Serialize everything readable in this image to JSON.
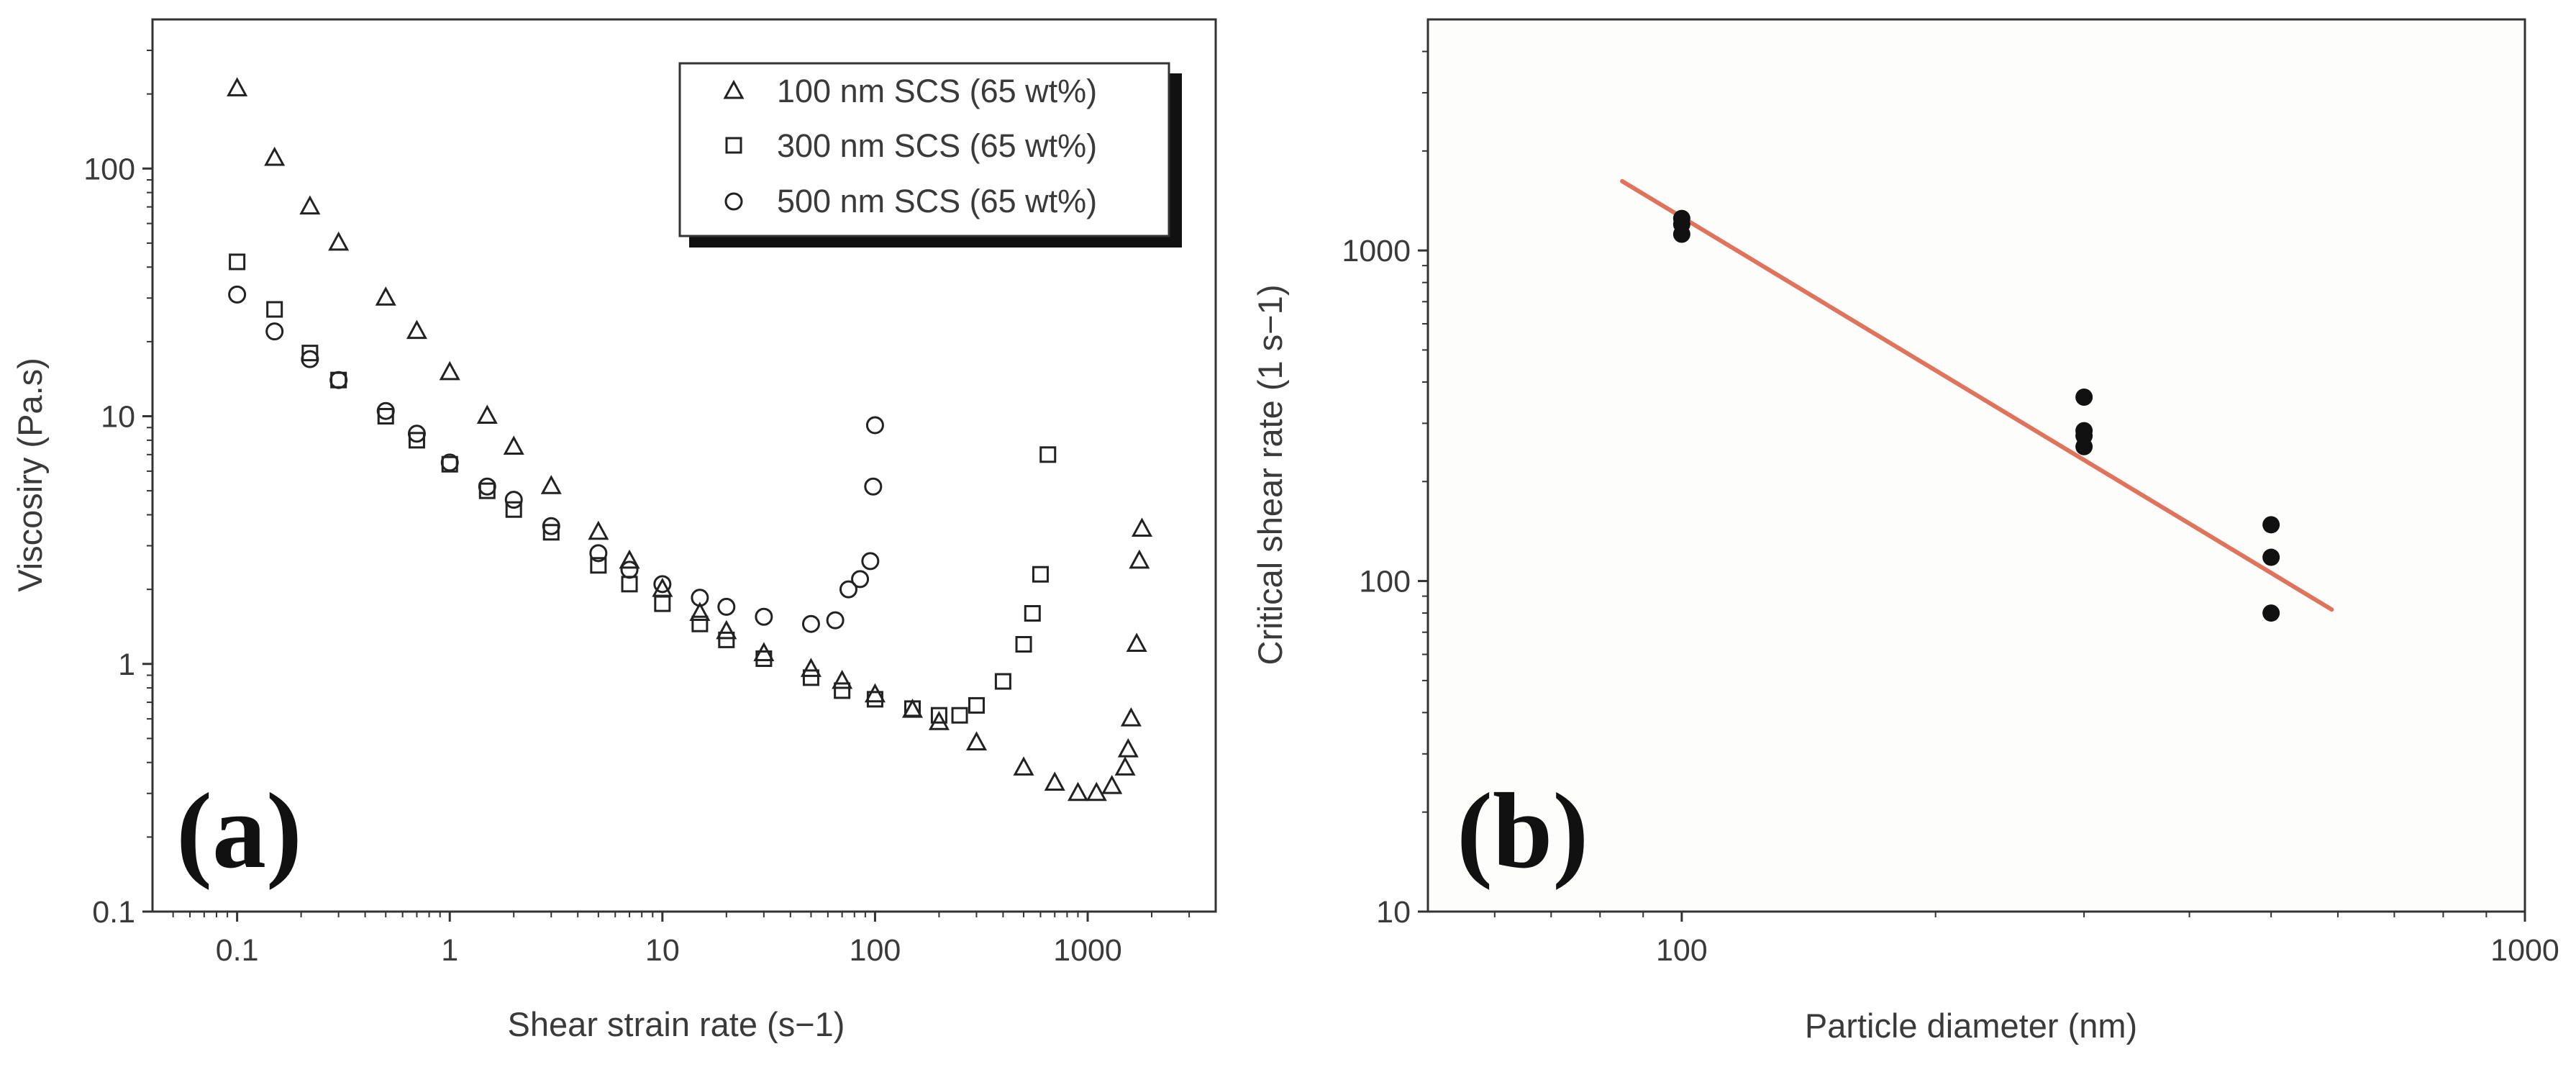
{
  "chart_data": [
    {
      "panel_label": "(a)",
      "type": "scatter",
      "xlabel": "Shear strain rate (s−1)",
      "ylabel": "Viscosiry (Pa.s)",
      "xscale": "log",
      "yscale": "log",
      "xlim": [
        0.04,
        4000
      ],
      "ylim": [
        0.1,
        400
      ],
      "xticks": [
        0.1,
        1,
        10,
        100,
        1000
      ],
      "xtick_labels": [
        "0.1",
        "1",
        "10",
        "100",
        "1000"
      ],
      "yticks": [
        0.1,
        1,
        10,
        100
      ],
      "ytick_labels": [
        "0.1",
        "1",
        "10",
        "100"
      ],
      "grid": false,
      "legend_position": "top-right",
      "colors": {
        "markers": "#222222",
        "axes": "#333333",
        "legend_shadow": "#111111"
      },
      "series": [
        {
          "name": "100 nm SCS (65 wt%)",
          "marker": "triangle",
          "x": [
            0.1,
            0.15,
            0.22,
            0.3,
            0.5,
            0.7,
            1,
            1.5,
            2,
            3,
            5,
            7,
            10,
            15,
            20,
            30,
            50,
            70,
            100,
            150,
            200,
            300,
            500,
            700,
            900,
            1100,
            1300,
            1500,
            1550,
            1600,
            1700,
            1750,
            1800
          ],
          "y": [
            210,
            110,
            70,
            50,
            30,
            22,
            15,
            10,
            7.5,
            5.2,
            3.4,
            2.6,
            2,
            1.6,
            1.35,
            1.1,
            0.95,
            0.85,
            0.75,
            0.65,
            0.58,
            0.48,
            0.38,
            0.33,
            0.3,
            0.3,
            0.32,
            0.38,
            0.45,
            0.6,
            1.2,
            2.6,
            3.5
          ]
        },
        {
          "name": "300 nm SCS (65 wt%)",
          "marker": "square",
          "x": [
            0.1,
            0.15,
            0.22,
            0.3,
            0.5,
            0.7,
            1,
            1.5,
            2,
            3,
            5,
            7,
            10,
            15,
            20,
            30,
            50,
            70,
            100,
            150,
            200,
            250,
            300,
            400,
            500,
            550,
            600,
            650
          ],
          "y": [
            42,
            27,
            18,
            14,
            10,
            8,
            6.4,
            5,
            4.2,
            3.4,
            2.5,
            2.1,
            1.75,
            1.45,
            1.25,
            1.05,
            0.88,
            0.78,
            0.72,
            0.66,
            0.62,
            0.62,
            0.68,
            0.85,
            1.2,
            1.6,
            2.3,
            7
          ]
        },
        {
          "name": "500 nm SCS (65 wt%)",
          "marker": "circle",
          "x": [
            0.1,
            0.15,
            0.22,
            0.3,
            0.5,
            0.7,
            1,
            1.5,
            2,
            3,
            5,
            7,
            10,
            15,
            20,
            30,
            50,
            65,
            75,
            85,
            95,
            98,
            100
          ],
          "y": [
            31,
            22,
            17,
            14,
            10.5,
            8.5,
            6.5,
            5.2,
            4.6,
            3.6,
            2.8,
            2.4,
            2.1,
            1.85,
            1.7,
            1.55,
            1.45,
            1.5,
            2,
            2.2,
            2.6,
            5.2,
            9.2
          ]
        }
      ]
    },
    {
      "panel_label": "(b)",
      "type": "scatter",
      "xlabel": "Particle diameter (nm)",
      "ylabel": "Critical shear rate (1 s−1)",
      "xscale": "log",
      "yscale": "log",
      "xlim": [
        50,
        1000
      ],
      "ylim": [
        10,
        5000
      ],
      "xticks": [
        100,
        1000
      ],
      "xtick_labels": [
        "100",
        "1000"
      ],
      "yticks": [
        10,
        100,
        1000
      ],
      "ytick_labels": [
        "10",
        "100",
        "1000"
      ],
      "grid": false,
      "colors": {
        "points": "#111111",
        "fit_line": "#e0735c",
        "axes": "#333333"
      },
      "points": {
        "x": [
          100,
          100,
          100,
          300,
          300,
          300,
          300,
          500,
          500,
          500
        ],
        "y": [
          1250,
          1200,
          1120,
          360,
          285,
          255,
          275,
          148,
          118,
          80
        ]
      },
      "fit_line": {
        "x": [
          85,
          590
        ],
        "y": [
          1620,
          82
        ]
      }
    }
  ]
}
